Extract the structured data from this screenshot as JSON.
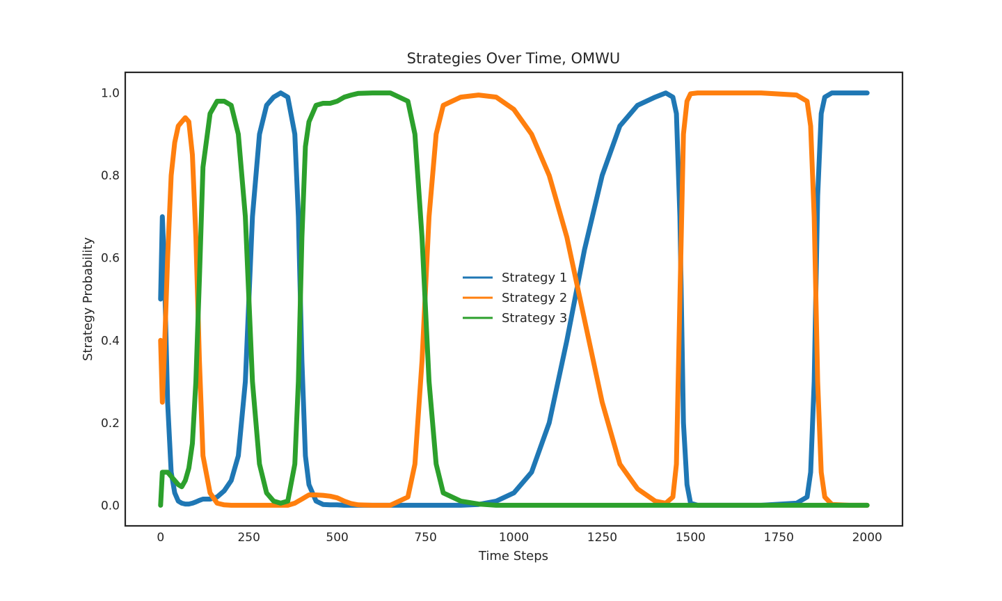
{
  "chart_data": {
    "type": "line",
    "title": "Strategies Over Time, OMWU",
    "xlabel": "Time Steps",
    "ylabel": "Strategy Probability",
    "xlim": [
      -100,
      2100
    ],
    "ylim": [
      -0.05,
      1.05
    ],
    "x_ticks": [
      0,
      250,
      500,
      750,
      1000,
      1250,
      1500,
      1750,
      2000
    ],
    "x_tick_labels": [
      "0",
      "250",
      "500",
      "750",
      "1000",
      "1250",
      "1500",
      "1750",
      "2000"
    ],
    "y_ticks": [
      0.0,
      0.2,
      0.4,
      0.6,
      0.8,
      1.0
    ],
    "y_tick_labels": [
      "0.0",
      "0.2",
      "0.4",
      "0.6",
      "0.8",
      "1.0"
    ],
    "grid": false,
    "legend_position": "center",
    "x": [
      0,
      5,
      10,
      20,
      30,
      40,
      50,
      60,
      70,
      80,
      90,
      100,
      110,
      120,
      140,
      160,
      180,
      200,
      220,
      240,
      260,
      280,
      300,
      320,
      340,
      360,
      380,
      390,
      400,
      410,
      420,
      440,
      460,
      480,
      500,
      520,
      540,
      560,
      600,
      650,
      700,
      720,
      740,
      760,
      780,
      800,
      850,
      900,
      950,
      1000,
      1050,
      1100,
      1150,
      1200,
      1250,
      1300,
      1350,
      1400,
      1430,
      1450,
      1460,
      1470,
      1480,
      1490,
      1500,
      1520,
      1550,
      1600,
      1700,
      1800,
      1830,
      1840,
      1850,
      1860,
      1870,
      1880,
      1900,
      1950,
      2000
    ],
    "series": [
      {
        "name": "Strategy 1",
        "color": "#1f77b4",
        "values": [
          0.5,
          0.7,
          0.6,
          0.25,
          0.08,
          0.03,
          0.01,
          0.005,
          0.003,
          0.003,
          0.005,
          0.008,
          0.012,
          0.015,
          0.015,
          0.02,
          0.035,
          0.06,
          0.12,
          0.3,
          0.7,
          0.9,
          0.97,
          0.99,
          1.0,
          0.99,
          0.9,
          0.7,
          0.35,
          0.12,
          0.05,
          0.01,
          0.002,
          0.001,
          0.001,
          0.0,
          0.0,
          0.0,
          0.0,
          0.0,
          0.0,
          0.0,
          0.0,
          0.0,
          0.0,
          0.0,
          0.0,
          0.002,
          0.01,
          0.03,
          0.08,
          0.2,
          0.4,
          0.62,
          0.8,
          0.92,
          0.97,
          0.99,
          1.0,
          0.99,
          0.95,
          0.7,
          0.2,
          0.05,
          0.005,
          0.0,
          0.0,
          0.0,
          0.0,
          0.005,
          0.02,
          0.08,
          0.3,
          0.75,
          0.95,
          0.99,
          1.0,
          1.0,
          1.0
        ]
      },
      {
        "name": "Strategy 2",
        "color": "#ff7f0e",
        "values": [
          0.4,
          0.25,
          0.35,
          0.6,
          0.8,
          0.88,
          0.92,
          0.93,
          0.94,
          0.93,
          0.85,
          0.65,
          0.35,
          0.12,
          0.03,
          0.005,
          0.001,
          0.0,
          0.0,
          0.0,
          0.0,
          0.0,
          0.0,
          0.0,
          0.0,
          0.0,
          0.005,
          0.01,
          0.015,
          0.02,
          0.025,
          0.025,
          0.024,
          0.022,
          0.018,
          0.01,
          0.004,
          0.001,
          0.0,
          0.0,
          0.02,
          0.1,
          0.35,
          0.7,
          0.9,
          0.97,
          0.99,
          0.995,
          0.99,
          0.96,
          0.9,
          0.8,
          0.65,
          0.45,
          0.25,
          0.1,
          0.04,
          0.01,
          0.005,
          0.02,
          0.1,
          0.5,
          0.9,
          0.98,
          0.998,
          1.0,
          1.0,
          1.0,
          1.0,
          0.995,
          0.98,
          0.92,
          0.7,
          0.3,
          0.08,
          0.02,
          0.002,
          0.0,
          0.0
        ]
      },
      {
        "name": "Strategy 3",
        "color": "#2ca02c",
        "values": [
          0.0,
          0.08,
          0.08,
          0.08,
          0.07,
          0.06,
          0.05,
          0.045,
          0.06,
          0.09,
          0.15,
          0.3,
          0.55,
          0.82,
          0.95,
          0.98,
          0.98,
          0.97,
          0.9,
          0.7,
          0.3,
          0.1,
          0.03,
          0.01,
          0.005,
          0.01,
          0.1,
          0.3,
          0.65,
          0.87,
          0.93,
          0.97,
          0.975,
          0.975,
          0.98,
          0.99,
          0.995,
          0.999,
          1.0,
          1.0,
          0.98,
          0.9,
          0.65,
          0.3,
          0.1,
          0.03,
          0.01,
          0.003,
          0.0,
          0.0,
          0.0,
          0.0,
          0.0,
          0.0,
          0.0,
          0.0,
          0.0,
          0.0,
          0.0,
          0.0,
          0.0,
          0.0,
          0.0,
          0.0,
          0.0,
          0.0,
          0.0,
          0.0,
          0.0,
          0.0,
          0.0,
          0.0,
          0.0,
          0.0,
          0.0,
          0.0,
          0.0,
          0.0,
          0.0
        ]
      }
    ]
  }
}
